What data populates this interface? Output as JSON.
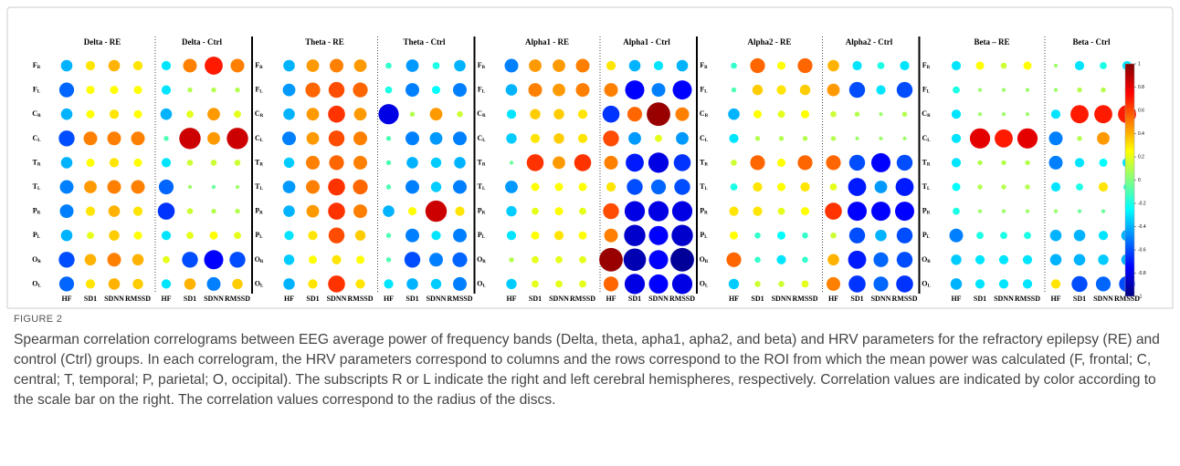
{
  "figure": {
    "rows": [
      {
        "letter": "F",
        "sub": "R"
      },
      {
        "letter": "F",
        "sub": "L"
      },
      {
        "letter": "C",
        "sub": "R"
      },
      {
        "letter": "C",
        "sub": "L"
      },
      {
        "letter": "T",
        "sub": "R"
      },
      {
        "letter": "T",
        "sub": "L"
      },
      {
        "letter": "P",
        "sub": "R"
      },
      {
        "letter": "P",
        "sub": "L"
      },
      {
        "letter": "O",
        "sub": "R"
      },
      {
        "letter": "O",
        "sub": "L"
      }
    ],
    "columns": [
      "HF",
      "SD1",
      "SDNN",
      "RMSSD"
    ],
    "panels": [
      {
        "title": "Delta - RE",
        "values": [
          [
            -0.4,
            0.3,
            0.4,
            0.3
          ],
          [
            -0.55,
            0.25,
            0.25,
            0.25
          ],
          [
            -0.4,
            0.25,
            0.3,
            0.25
          ],
          [
            -0.6,
            0.5,
            0.5,
            0.5
          ],
          [
            -0.4,
            0.25,
            0.3,
            0.25
          ],
          [
            -0.5,
            0.45,
            0.5,
            0.5
          ],
          [
            -0.5,
            0.3,
            0.4,
            0.3
          ],
          [
            -0.4,
            0.2,
            0.35,
            0.25
          ],
          [
            -0.6,
            0.4,
            0.5,
            0.4
          ],
          [
            -0.55,
            0.3,
            0.4,
            0.35
          ]
        ]
      },
      {
        "title": "Delta - Ctrl",
        "values": [
          [
            -0.3,
            0.5,
            0.7,
            0.5
          ],
          [
            -0.3,
            0.1,
            0.1,
            0.1
          ],
          [
            -0.4,
            0.2,
            0.45,
            0.2
          ],
          [
            -0.1,
            0.85,
            0.45,
            0.85
          ],
          [
            -0.3,
            0.15,
            0.15,
            0.15
          ],
          [
            -0.55,
            0.05,
            -0.05,
            0.05
          ],
          [
            -0.65,
            0.15,
            0.1,
            0.1
          ],
          [
            -0.3,
            0.2,
            0.25,
            0.2
          ],
          [
            0.2,
            -0.6,
            -0.75,
            -0.6
          ],
          [
            -0.3,
            0.4,
            -0.5,
            0.35
          ]
        ]
      },
      {
        "title": "Theta - RE",
        "values": [
          [
            -0.4,
            0.45,
            0.5,
            0.45
          ],
          [
            -0.45,
            0.55,
            0.6,
            0.55
          ],
          [
            -0.4,
            0.45,
            0.65,
            0.45
          ],
          [
            -0.5,
            0.45,
            0.6,
            0.5
          ],
          [
            -0.35,
            0.5,
            0.55,
            0.5
          ],
          [
            -0.45,
            0.5,
            0.65,
            0.55
          ],
          [
            -0.4,
            0.45,
            0.65,
            0.5
          ],
          [
            -0.3,
            0.3,
            0.6,
            0.35
          ],
          [
            -0.35,
            0.25,
            0.3,
            0.25
          ],
          [
            -0.4,
            0.3,
            0.65,
            0.3
          ]
        ]
      },
      {
        "title": "Theta - Ctrl",
        "values": [
          [
            -0.15,
            -0.45,
            -0.2,
            -0.4
          ],
          [
            -0.2,
            -0.5,
            -0.25,
            -0.5
          ],
          [
            -0.8,
            0.1,
            0.45,
            0.15
          ],
          [
            -0.1,
            -0.5,
            -0.45,
            -0.5
          ],
          [
            -0.1,
            -0.4,
            -0.35,
            -0.4
          ],
          [
            -0.1,
            -0.5,
            -0.35,
            -0.5
          ],
          [
            -0.4,
            0.25,
            0.85,
            0.3
          ],
          [
            -0.1,
            -0.5,
            -0.3,
            -0.5
          ],
          [
            -0.1,
            -0.6,
            -0.5,
            -0.55
          ],
          [
            -0.3,
            -0.4,
            -0.35,
            -0.5
          ]
        ]
      },
      {
        "title": "Alpha1 - RE",
        "values": [
          [
            -0.5,
            0.45,
            0.45,
            0.5
          ],
          [
            -0.4,
            0.5,
            0.45,
            0.5
          ],
          [
            -0.3,
            0.35,
            0.35,
            0.3
          ],
          [
            -0.35,
            0.3,
            0.35,
            0.3
          ],
          [
            -0.05,
            0.65,
            0.45,
            0.65
          ],
          [
            -0.45,
            0.25,
            0.25,
            0.25
          ],
          [
            -0.35,
            0.2,
            0.25,
            0.2
          ],
          [
            -0.3,
            0.25,
            0.3,
            0.25
          ],
          [
            0.1,
            0.2,
            0.2,
            0.2
          ],
          [
            -0.35,
            0.2,
            0.2,
            0.2
          ]
        ]
      },
      {
        "title": "Alpha1 - Ctrl",
        "values": [
          [
            0.3,
            -0.4,
            -0.3,
            -0.4
          ],
          [
            0.5,
            -0.75,
            -0.5,
            -0.75
          ],
          [
            -0.65,
            0.55,
            0.95,
            0.5
          ],
          [
            0.6,
            -0.45,
            0.2,
            -0.45
          ],
          [
            0.5,
            -0.7,
            -0.8,
            -0.65
          ],
          [
            0.3,
            -0.6,
            -0.55,
            -0.6
          ],
          [
            0.6,
            -0.8,
            -0.8,
            -0.8
          ],
          [
            0.5,
            -0.85,
            -0.75,
            -0.85
          ],
          [
            0.95,
            -0.9,
            -0.75,
            -0.95
          ],
          [
            0.55,
            -0.8,
            -0.75,
            -0.8
          ]
        ]
      },
      {
        "title": "Alpha2 - RE",
        "values": [
          [
            -0.15,
            0.55,
            0.25,
            0.55
          ],
          [
            -0.1,
            0.35,
            0.3,
            0.35
          ],
          [
            -0.4,
            0.25,
            0.2,
            0.25
          ],
          [
            -0.3,
            0.1,
            0.1,
            0.1
          ],
          [
            0.15,
            0.55,
            0.25,
            0.55
          ],
          [
            -0.2,
            0.3,
            0.25,
            0.3
          ],
          [
            0.3,
            0.3,
            0.2,
            0.25
          ],
          [
            0.25,
            -0.15,
            -0.25,
            -0.15
          ],
          [
            0.55,
            -0.15,
            -0.3,
            -0.15
          ],
          [
            -0.35,
            0.15,
            0.15,
            0.2
          ]
        ]
      },
      {
        "title": "Alpha2 - Ctrl",
        "values": [
          [
            0.4,
            -0.3,
            -0.2,
            -0.3
          ],
          [
            0.45,
            -0.6,
            -0.3,
            -0.6
          ],
          [
            0.15,
            0.1,
            0.05,
            0.1
          ],
          [
            0.1,
            0.05,
            0.05,
            0.05
          ],
          [
            0.55,
            -0.6,
            -0.75,
            -0.6
          ],
          [
            0.2,
            -0.7,
            -0.45,
            -0.7
          ],
          [
            0.65,
            -0.75,
            -0.75,
            -0.75
          ],
          [
            0.15,
            -0.6,
            -0.4,
            -0.6
          ],
          [
            0.4,
            -0.7,
            -0.55,
            -0.6
          ],
          [
            0.5,
            -0.65,
            -0.55,
            -0.65
          ]
        ]
      },
      {
        "title": "Beta – RE",
        "values": [
          [
            -0.3,
            0.25,
            0.15,
            0.25
          ],
          [
            -0.2,
            0.05,
            0.05,
            0.05
          ],
          [
            -0.3,
            0.05,
            0.05,
            0.05
          ],
          [
            -0.3,
            0.8,
            0.7,
            0.8
          ],
          [
            -0.3,
            0.1,
            0.1,
            0.1
          ],
          [
            -0.25,
            0.1,
            0.1,
            0.1
          ],
          [
            -0.2,
            0.05,
            0.05,
            0.05
          ],
          [
            -0.5,
            -0.2,
            -0.2,
            -0.2
          ],
          [
            -0.35,
            -0.3,
            -0.3,
            -0.3
          ],
          [
            -0.4,
            -0.3,
            -0.3,
            -0.3
          ]
        ]
      },
      {
        "title": "Beta - Ctrl",
        "values": [
          [
            0.05,
            -0.3,
            -0.2,
            -0.3
          ],
          [
            0.05,
            0.1,
            0.1,
            0.1
          ],
          [
            -0.3,
            0.7,
            0.7,
            0.7
          ],
          [
            -0.5,
            0.1,
            0.45,
            0.1
          ],
          [
            -0.5,
            -0.3,
            -0.25,
            -0.3
          ],
          [
            -0.3,
            -0.2,
            0.3,
            -0.2
          ],
          [
            0.05,
            -0.05,
            -0.05,
            -0.05
          ],
          [
            -0.4,
            -0.4,
            -0.3,
            -0.4
          ],
          [
            -0.4,
            -0.4,
            -0.35,
            -0.4
          ],
          [
            0.3,
            -0.6,
            -0.55,
            -0.6
          ]
        ]
      }
    ],
    "colorbar": {
      "lim": [
        -1,
        1
      ],
      "ticks": [
        1,
        0.8,
        0.6,
        0.4,
        0.2,
        0,
        -0.2,
        -0.4,
        -0.6,
        -0.8,
        -1
      ]
    }
  },
  "caption": {
    "label": "FIGURE 2",
    "text": "Spearman correlation correlograms between EEG average power of frequency bands (Delta, theta, apha1, apha2, and beta) and HRV parameters for the refractory epilepsy (RE) and control (Ctrl) groups. In each correlogram, the HRV parameters correspond to columns and the rows correspond to the ROI from which the mean power was calculated (F, frontal; C, central; T, temporal; P, parietal; O, occipital). The subscripts R or L indicate the right and left cerebral hemispheres, respectively. Correlation values are indicated by color according to the scale bar on the right. The correlation values correspond to the radius of the discs."
  }
}
